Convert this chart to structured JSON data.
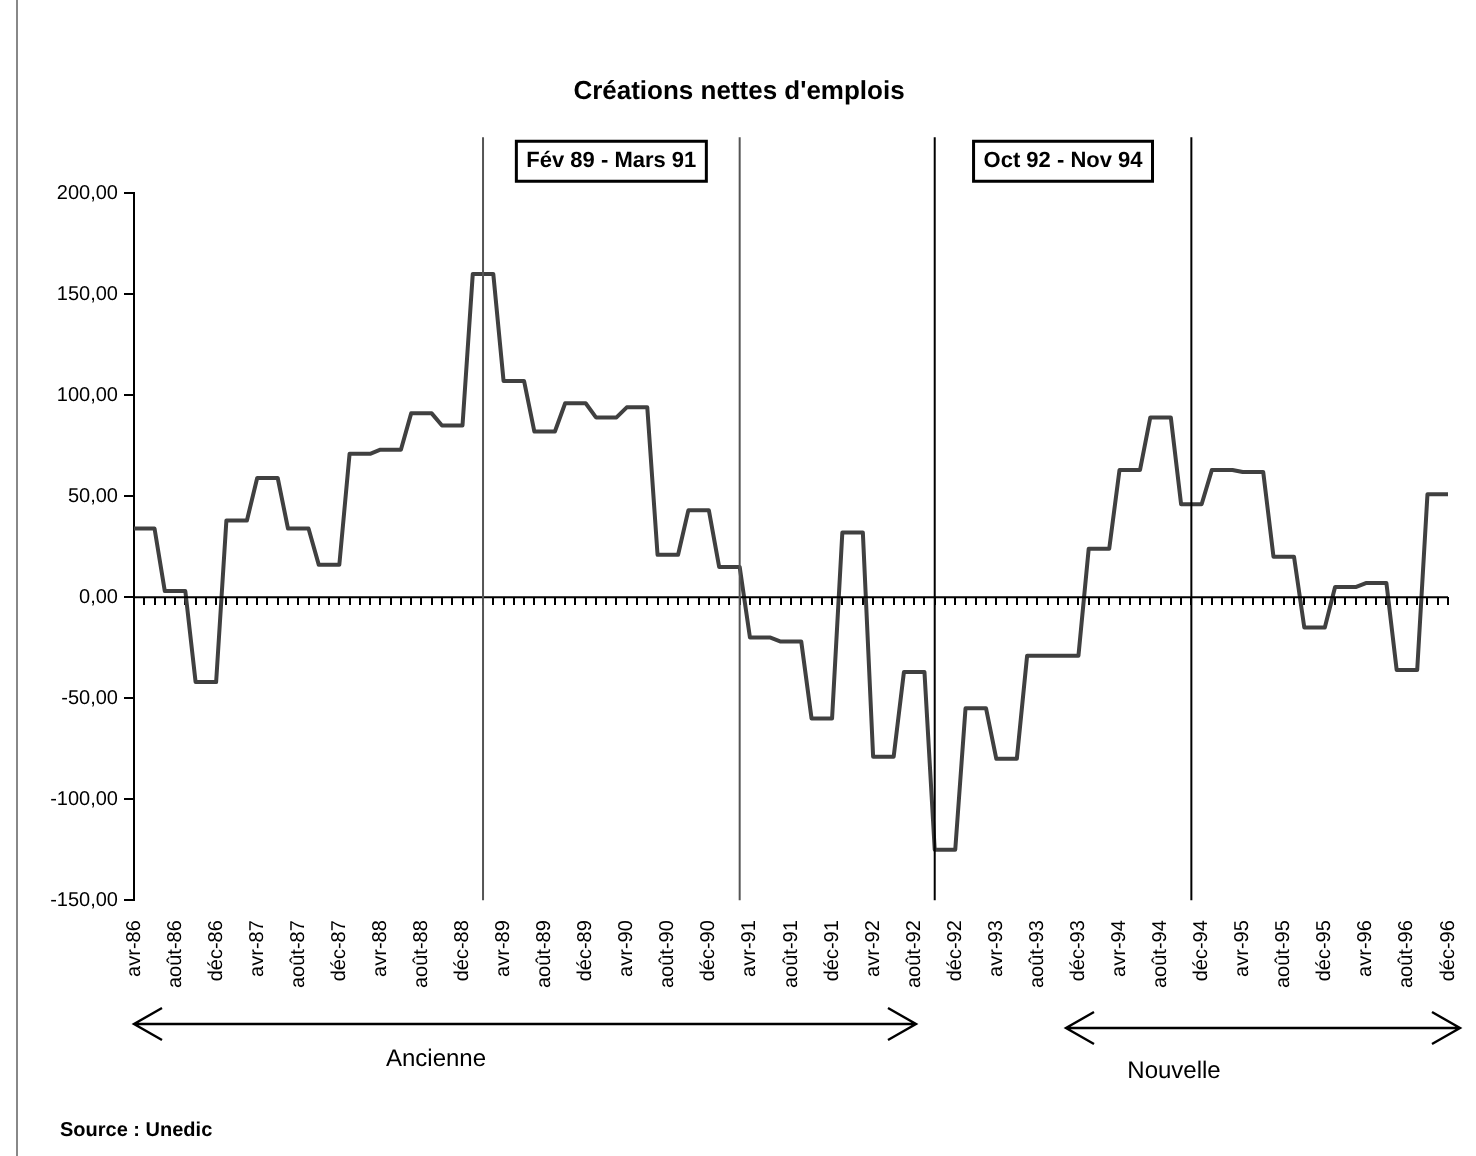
{
  "chart_data": {
    "type": "line",
    "title": "Créations nettes d'emplois",
    "x": [
      "1986-04",
      "1986-05",
      "1986-06",
      "1986-07",
      "1986-08",
      "1986-09",
      "1986-10",
      "1986-11",
      "1986-12",
      "1987-01",
      "1987-02",
      "1987-03",
      "1987-04",
      "1987-05",
      "1987-06",
      "1987-07",
      "1987-08",
      "1987-09",
      "1987-10",
      "1987-11",
      "1987-12",
      "1988-01",
      "1988-02",
      "1988-03",
      "1988-04",
      "1988-05",
      "1988-06",
      "1988-07",
      "1988-08",
      "1988-09",
      "1988-10",
      "1988-11",
      "1988-12",
      "1989-01",
      "1989-02",
      "1989-03",
      "1989-04",
      "1989-05",
      "1989-06",
      "1989-07",
      "1989-08",
      "1989-09",
      "1989-10",
      "1989-11",
      "1989-12",
      "1990-01",
      "1990-02",
      "1990-03",
      "1990-04",
      "1990-05",
      "1990-06",
      "1990-07",
      "1990-08",
      "1990-09",
      "1990-10",
      "1990-11",
      "1990-12",
      "1991-01",
      "1991-02",
      "1991-03",
      "1991-04",
      "1991-05",
      "1991-06",
      "1991-07",
      "1991-08",
      "1991-09",
      "1991-10",
      "1991-11",
      "1991-12",
      "1992-01",
      "1992-02",
      "1992-03",
      "1992-04",
      "1992-05",
      "1992-06",
      "1992-07",
      "1992-08",
      "1992-09",
      "1992-10",
      "1992-11",
      "1992-12",
      "1993-01",
      "1993-02",
      "1993-03",
      "1993-04",
      "1993-05",
      "1993-06",
      "1993-07",
      "1993-08",
      "1993-09",
      "1993-10",
      "1993-11",
      "1993-12",
      "1994-01",
      "1994-02",
      "1994-03",
      "1994-04",
      "1994-05",
      "1994-06",
      "1994-07",
      "1994-08",
      "1994-09",
      "1994-10",
      "1994-11",
      "1994-12",
      "1995-01",
      "1995-02",
      "1995-03",
      "1995-04",
      "1995-05",
      "1995-06",
      "1995-07",
      "1995-08",
      "1995-09",
      "1995-10",
      "1995-11",
      "1995-12",
      "1996-01",
      "1996-02",
      "1996-03",
      "1996-04",
      "1996-05",
      "1996-06",
      "1996-07",
      "1996-08",
      "1996-09",
      "1996-10",
      "1996-11",
      "1996-12"
    ],
    "series": [
      {
        "color": "#404040",
        "values": [
          34,
          34,
          34,
          3,
          3,
          3,
          -42,
          -42,
          -42,
          38,
          38,
          38,
          59,
          59,
          59,
          34,
          34,
          34,
          16,
          16,
          16,
          71,
          71,
          71,
          73,
          73,
          73,
          91,
          91,
          91,
          85,
          85,
          85,
          160,
          160,
          160,
          107,
          107,
          107,
          82,
          82,
          82,
          96,
          96,
          96,
          89,
          89,
          89,
          94,
          94,
          94,
          21,
          21,
          21,
          43,
          43,
          43,
          15,
          15,
          15,
          -20,
          -20,
          -20,
          -22,
          -22,
          -22,
          -60,
          -60,
          -60,
          32,
          32,
          32,
          -79,
          -79,
          -79,
          -37,
          -37,
          -37,
          -125,
          -125,
          -125,
          -55,
          -55,
          -55,
          -80,
          -80,
          -80,
          -29,
          -29,
          -29,
          -29,
          -29,
          -29,
          24,
          24,
          24,
          63,
          63,
          63,
          89,
          89,
          89,
          46,
          46,
          46,
          63,
          63,
          63,
          62,
          62,
          62,
          20,
          20,
          20,
          -15,
          -15,
          -15,
          5,
          5,
          5,
          7,
          7,
          7,
          -36,
          -36,
          -36,
          51,
          51,
          51
        ]
      }
    ],
    "xlim": [
      "1986-04",
      "1996-12"
    ],
    "xticks": [
      {
        "value": "1986-04",
        "label": "avr-86"
      },
      {
        "value": "1986-05",
        "label": null
      },
      {
        "value": "1986-06",
        "label": null
      },
      {
        "value": "1986-07",
        "label": null
      },
      {
        "value": "1986-08",
        "label": "août-86"
      },
      {
        "value": "1986-09",
        "label": null
      },
      {
        "value": "1986-10",
        "label": null
      },
      {
        "value": "1986-11",
        "label": null
      },
      {
        "value": "1986-12",
        "label": "déc-86"
      },
      {
        "value": "1987-01",
        "label": null
      },
      {
        "value": "1987-02",
        "label": null
      },
      {
        "value": "1987-03",
        "label": null
      },
      {
        "value": "1987-04",
        "label": "avr-87"
      },
      {
        "value": "1987-05",
        "label": null
      },
      {
        "value": "1987-06",
        "label": null
      },
      {
        "value": "1987-07",
        "label": null
      },
      {
        "value": "1987-08",
        "label": "août-87"
      },
      {
        "value": "1987-09",
        "label": null
      },
      {
        "value": "1987-10",
        "label": null
      },
      {
        "value": "1987-11",
        "label": null
      },
      {
        "value": "1987-12",
        "label": "déc-87"
      },
      {
        "value": "1988-01",
        "label": null
      },
      {
        "value": "1988-02",
        "label": null
      },
      {
        "value": "1988-03",
        "label": null
      },
      {
        "value": "1988-04",
        "label": "avr-88"
      },
      {
        "value": "1988-05",
        "label": null
      },
      {
        "value": "1988-06",
        "label": null
      },
      {
        "value": "1988-07",
        "label": null
      },
      {
        "value": "1988-08",
        "label": "août-88"
      },
      {
        "value": "1988-09",
        "label": null
      },
      {
        "value": "1988-10",
        "label": null
      },
      {
        "value": "1988-11",
        "label": null
      },
      {
        "value": "1988-12",
        "label": "déc-88"
      },
      {
        "value": "1989-01",
        "label": null
      },
      {
        "value": "1989-02",
        "label": null
      },
      {
        "value": "1989-03",
        "label": null
      },
      {
        "value": "1989-04",
        "label": "avr-89"
      },
      {
        "value": "1989-05",
        "label": null
      },
      {
        "value": "1989-06",
        "label": null
      },
      {
        "value": "1989-07",
        "label": null
      },
      {
        "value": "1989-08",
        "label": "août-89"
      },
      {
        "value": "1989-09",
        "label": null
      },
      {
        "value": "1989-10",
        "label": null
      },
      {
        "value": "1989-11",
        "label": null
      },
      {
        "value": "1989-12",
        "label": "déc-89"
      },
      {
        "value": "1990-01",
        "label": null
      },
      {
        "value": "1990-02",
        "label": null
      },
      {
        "value": "1990-03",
        "label": null
      },
      {
        "value": "1990-04",
        "label": "avr-90"
      },
      {
        "value": "1990-05",
        "label": null
      },
      {
        "value": "1990-06",
        "label": null
      },
      {
        "value": "1990-07",
        "label": null
      },
      {
        "value": "1990-08",
        "label": "août-90"
      },
      {
        "value": "1990-09",
        "label": null
      },
      {
        "value": "1990-10",
        "label": null
      },
      {
        "value": "1990-11",
        "label": null
      },
      {
        "value": "1990-12",
        "label": "déc-90"
      },
      {
        "value": "1991-01",
        "label": null
      },
      {
        "value": "1991-02",
        "label": null
      },
      {
        "value": "1991-03",
        "label": null
      },
      {
        "value": "1991-04",
        "label": "avr-91"
      },
      {
        "value": "1991-05",
        "label": null
      },
      {
        "value": "1991-06",
        "label": null
      },
      {
        "value": "1991-07",
        "label": null
      },
      {
        "value": "1991-08",
        "label": "août-91"
      },
      {
        "value": "1991-09",
        "label": null
      },
      {
        "value": "1991-10",
        "label": null
      },
      {
        "value": "1991-11",
        "label": null
      },
      {
        "value": "1991-12",
        "label": "déc-91"
      },
      {
        "value": "1992-01",
        "label": null
      },
      {
        "value": "1992-02",
        "label": null
      },
      {
        "value": "1992-03",
        "label": null
      },
      {
        "value": "1992-04",
        "label": "avr-92"
      },
      {
        "value": "1992-05",
        "label": null
      },
      {
        "value": "1992-06",
        "label": null
      },
      {
        "value": "1992-07",
        "label": null
      },
      {
        "value": "1992-08",
        "label": "août-92"
      },
      {
        "value": "1992-09",
        "label": null
      },
      {
        "value": "1992-10",
        "label": null
      },
      {
        "value": "1992-11",
        "label": null
      },
      {
        "value": "1992-12",
        "label": "déc-92"
      },
      {
        "value": "1993-01",
        "label": null
      },
      {
        "value": "1993-02",
        "label": null
      },
      {
        "value": "1993-03",
        "label": null
      },
      {
        "value": "1993-04",
        "label": "avr-93"
      },
      {
        "value": "1993-05",
        "label": null
      },
      {
        "value": "1993-06",
        "label": null
      },
      {
        "value": "1993-07",
        "label": null
      },
      {
        "value": "1993-08",
        "label": "août-93"
      },
      {
        "value": "1993-09",
        "label": null
      },
      {
        "value": "1993-10",
        "label": null
      },
      {
        "value": "1993-11",
        "label": null
      },
      {
        "value": "1993-12",
        "label": "déc-93"
      },
      {
        "value": "1994-01",
        "label": null
      },
      {
        "value": "1994-02",
        "label": null
      },
      {
        "value": "1994-03",
        "label": null
      },
      {
        "value": "1994-04",
        "label": "avr-94"
      },
      {
        "value": "1994-05",
        "label": null
      },
      {
        "value": "1994-06",
        "label": null
      },
      {
        "value": "1994-07",
        "label": null
      },
      {
        "value": "1994-08",
        "label": "août-94"
      },
      {
        "value": "1994-09",
        "label": null
      },
      {
        "value": "1994-10",
        "label": null
      },
      {
        "value": "1994-11",
        "label": null
      },
      {
        "value": "1994-12",
        "label": "déc-94"
      },
      {
        "value": "1995-01",
        "label": null
      },
      {
        "value": "1995-02",
        "label": null
      },
      {
        "value": "1995-03",
        "label": null
      },
      {
        "value": "1995-04",
        "label": "avr-95"
      },
      {
        "value": "1995-05",
        "label": null
      },
      {
        "value": "1995-06",
        "label": null
      },
      {
        "value": "1995-07",
        "label": null
      },
      {
        "value": "1995-08",
        "label": "août-95"
      },
      {
        "value": "1995-09",
        "label": null
      },
      {
        "value": "1995-10",
        "label": null
      },
      {
        "value": "1995-11",
        "label": null
      },
      {
        "value": "1995-12",
        "label": "déc-95"
      },
      {
        "value": "1996-01",
        "label": null
      },
      {
        "value": "1996-02",
        "label": null
      },
      {
        "value": "1996-03",
        "label": null
      },
      {
        "value": "1996-04",
        "label": "avr-96"
      },
      {
        "value": "1996-05",
        "label": null
      },
      {
        "value": "1996-06",
        "label": null
      },
      {
        "value": "1996-07",
        "label": null
      },
      {
        "value": "1996-08",
        "label": "août-96"
      },
      {
        "value": "1996-09",
        "label": null
      },
      {
        "value": "1996-10",
        "label": null
      },
      {
        "value": "1996-11",
        "label": null
      },
      {
        "value": "1996-12",
        "label": "déc-96"
      }
    ],
    "ylim": [
      -150,
      200
    ],
    "yticks": [
      {
        "value": -150,
        "label": "-150,00"
      },
      {
        "value": -100,
        "label": "-100,00"
      },
      {
        "value": -50,
        "label": "-50,00"
      },
      {
        "value": 0,
        "label": "0,00"
      },
      {
        "value": 50,
        "label": "50,00"
      },
      {
        "value": 100,
        "label": "100,00"
      },
      {
        "value": 150,
        "label": "150,00"
      },
      {
        "value": 200,
        "label": "200,00"
      }
    ],
    "ref_lines": [
      {
        "axis": "y",
        "value": 0,
        "color": "#000000"
      },
      {
        "axis": "x",
        "value": "1989-02",
        "color": "#555555"
      },
      {
        "axis": "x",
        "value": "1991-03",
        "color": "#555555"
      },
      {
        "axis": "x",
        "value": "1992-10",
        "color": "#000000"
      },
      {
        "axis": "x",
        "value": "1994-11",
        "color": "#000000"
      }
    ],
    "annotations": [
      "Fév 89 - Mars 91",
      "Oct 92 - Nov 94",
      "Ancienne",
      "Nouvelle",
      "Source : Unedic"
    ],
    "grid": false,
    "legend": false,
    "marker": "none",
    "line_style": "solid"
  }
}
